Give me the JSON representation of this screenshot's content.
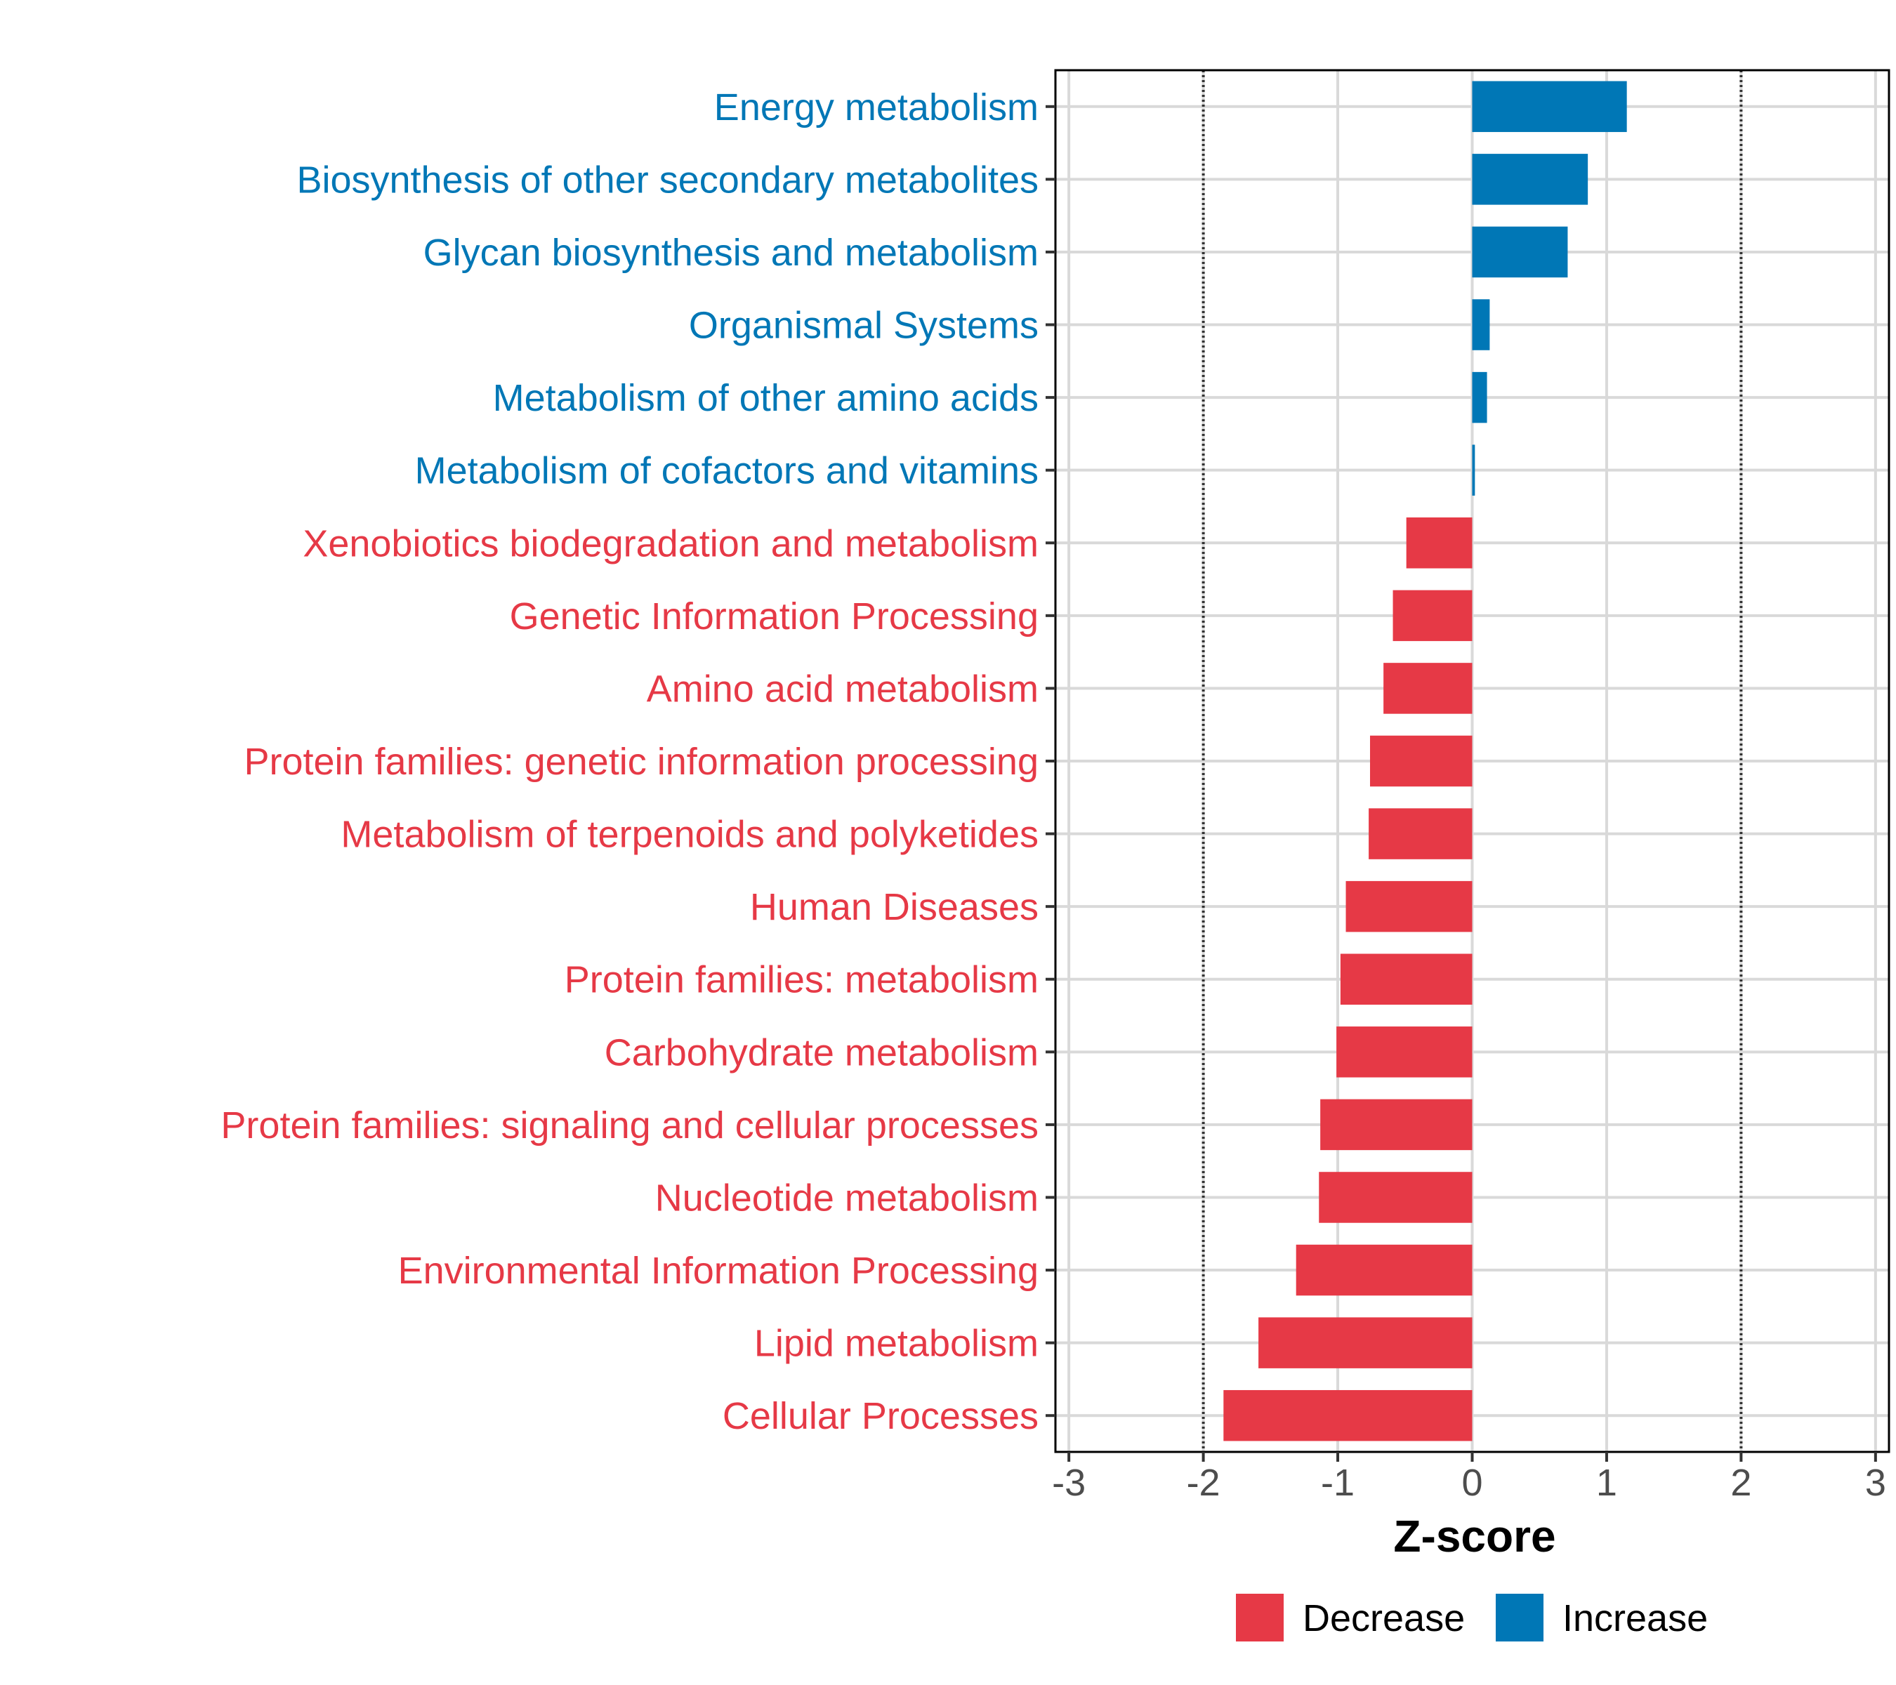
{
  "chart_data": {
    "type": "bar",
    "orientation": "horizontal",
    "title": "",
    "xlabel": "Z-score",
    "ylabel": "",
    "xlim": [
      -3.1,
      3.1
    ],
    "x_ticks": [
      -3,
      -2,
      -1,
      0,
      1,
      2,
      3
    ],
    "x_tick_labels": [
      "-3",
      "-2",
      "-1",
      "0",
      "1",
      "2",
      "3"
    ],
    "reference_lines": [
      -2,
      2
    ],
    "grid": true,
    "categories": [
      "Energy metabolism",
      "Biosynthesis of other secondary metabolites",
      "Glycan biosynthesis and metabolism",
      "Organismal Systems",
      "Metabolism of other amino acids",
      "Metabolism of cofactors and vitamins",
      "Xenobiotics biodegradation and metabolism",
      "Genetic Information Processing",
      "Amino acid metabolism",
      "Protein families: genetic information processing",
      "Metabolism of terpenoids and polyketides",
      "Human Diseases",
      "Protein families: metabolism",
      "Carbohydrate metabolism",
      "Protein families: signaling and cellular processes",
      "Nucleotide metabolism",
      "Environmental Information Processing",
      "Lipid metabolism",
      "Cellular Processes"
    ],
    "values": [
      1.15,
      0.86,
      0.71,
      0.13,
      0.11,
      0.02,
      -0.49,
      -0.59,
      -0.66,
      -0.76,
      -0.77,
      -0.94,
      -0.98,
      -1.01,
      -1.13,
      -1.14,
      -1.31,
      -1.59,
      -1.85
    ],
    "groups": [
      "Increase",
      "Increase",
      "Increase",
      "Increase",
      "Increase",
      "Increase",
      "Decrease",
      "Decrease",
      "Decrease",
      "Decrease",
      "Decrease",
      "Decrease",
      "Decrease",
      "Decrease",
      "Decrease",
      "Decrease",
      "Decrease",
      "Decrease",
      "Decrease"
    ],
    "legend": [
      {
        "name": "Decrease",
        "color": "#e63946"
      },
      {
        "name": "Increase",
        "color": "#0077b6"
      }
    ],
    "legend_position": "bottom"
  }
}
